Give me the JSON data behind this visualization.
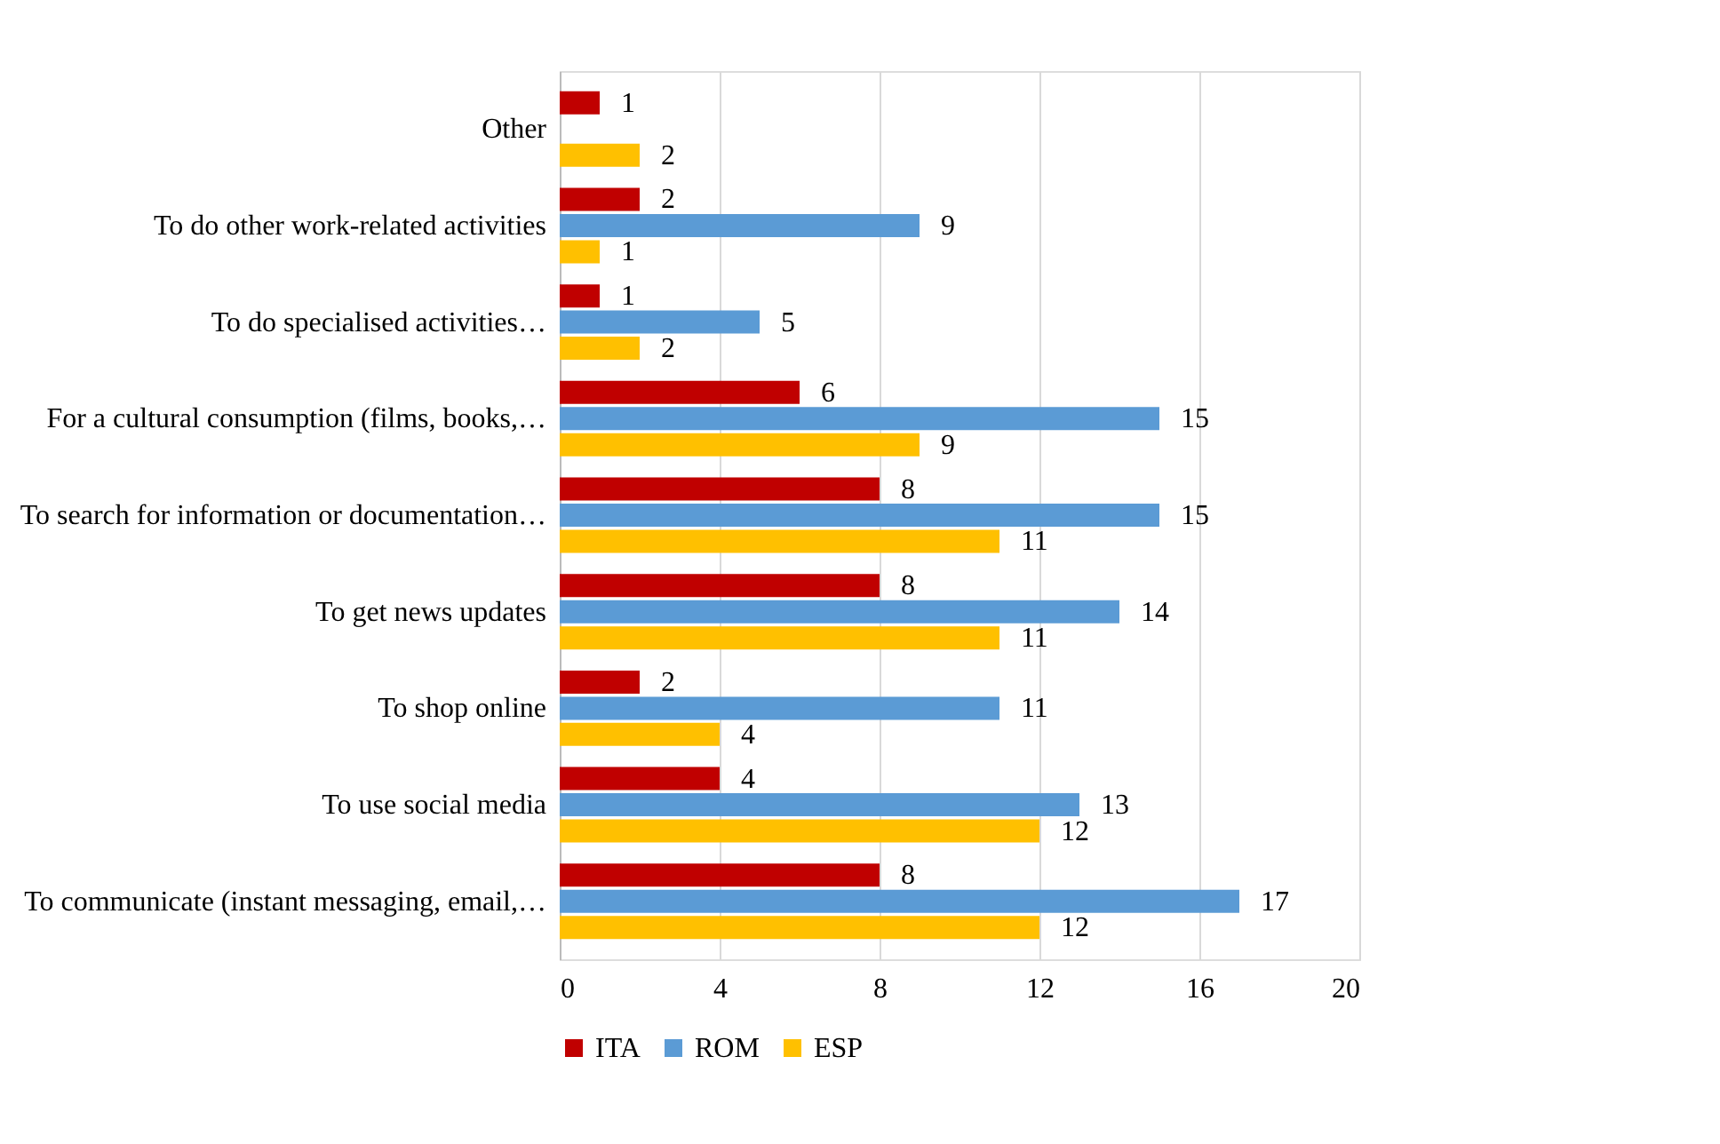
{
  "chart_data": {
    "type": "bar",
    "orientation": "horizontal",
    "categories": [
      "Other",
      "To do other work-related activities",
      "To do specialised activities…",
      "For a cultural consumption (films, books,…",
      "To search for information or documentation…",
      "To get news updates",
      "To shop online",
      "To use social media",
      "To communicate (instant messaging, email,…"
    ],
    "series": [
      {
        "name": "ITA",
        "color": "#c00000",
        "values": [
          1,
          2,
          1,
          6,
          8,
          8,
          2,
          4,
          8
        ]
      },
      {
        "name": "ROM",
        "color": "#5b9bd5",
        "values": [
          null,
          9,
          5,
          15,
          15,
          14,
          11,
          13,
          17
        ]
      },
      {
        "name": "ESP",
        "color": "#ffc000",
        "values": [
          2,
          1,
          2,
          9,
          11,
          11,
          4,
          12,
          12
        ]
      }
    ],
    "xlim": [
      0,
      20
    ],
    "xticks": [
      0,
      4,
      8,
      12,
      16,
      20
    ],
    "grid": "x",
    "legend": "bottom",
    "data_labels": true
  }
}
